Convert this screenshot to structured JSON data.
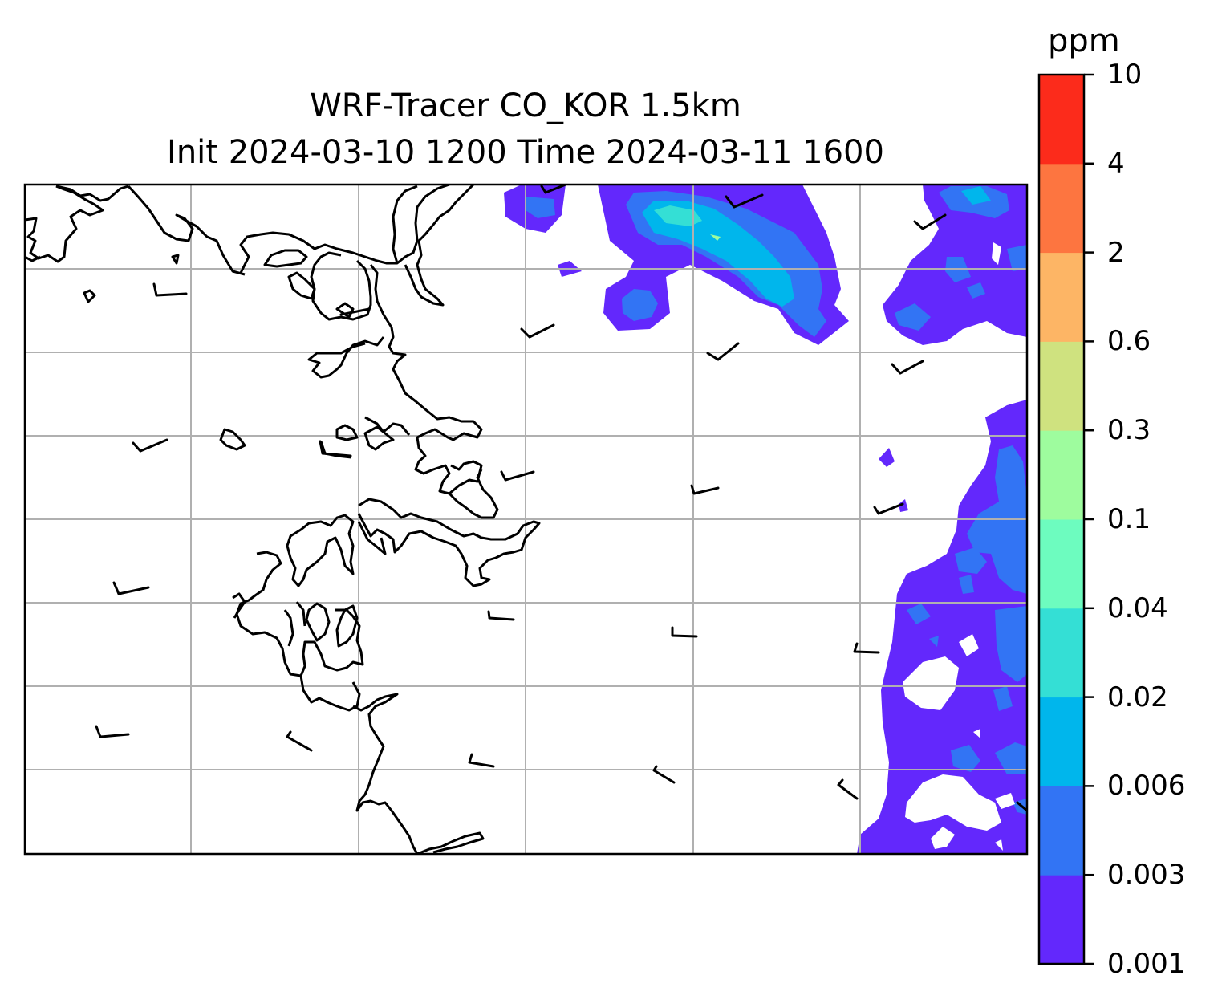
{
  "title": {
    "line1": "WRF-Tracer CO_KOR 1.5km",
    "line2": "Init 2024-03-10 1200 Time 2024-03-11 1600"
  },
  "colorbar": {
    "unit": "ppm",
    "levels": [
      "0.001",
      "0.003",
      "0.006",
      "0.02",
      "0.04",
      "0.1",
      "0.3",
      "0.6",
      "2",
      "4",
      "10"
    ],
    "colors": [
      "#6328fc",
      "#3274f4",
      "#00b6ec",
      "#34dfd5",
      "#6dfcbf",
      "#9efc9e",
      "#cfe27f",
      "#fdb565",
      "#fd7540",
      "#fc2b1b"
    ]
  },
  "map": {
    "type": "contour-map",
    "gridlines": true,
    "coastlines": true,
    "wind_barbs": true
  }
}
